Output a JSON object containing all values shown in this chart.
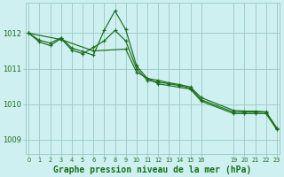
{
  "background_color": "#cff0f0",
  "grid_color": "#a0cccc",
  "line_color": "#1a6e1a",
  "marker_color": "#1a6e1a",
  "xlabel": "Graphe pression niveau de la mer (hPa)",
  "xlabel_fontsize": 7.0,
  "ylim": [
    1008.6,
    1012.85
  ],
  "yticks": [
    1009,
    1010,
    1011,
    1012
  ],
  "xlim": [
    -0.3,
    23.3
  ],
  "series": [
    {
      "x": [
        0,
        1,
        2,
        3,
        4,
        5,
        6,
        7,
        8,
        9,
        10,
        11,
        12,
        13,
        14,
        15,
        16,
        19,
        20,
        21,
        22,
        23
      ],
      "y": [
        1012.0,
        1011.8,
        1011.72,
        1011.87,
        1011.58,
        1011.48,
        1011.38,
        1012.08,
        1012.63,
        1012.1,
        1011.08,
        1010.72,
        1010.67,
        1010.6,
        1010.55,
        1010.48,
        1010.18,
        1009.82,
        1009.8,
        1009.8,
        1009.78,
        1009.32
      ]
    },
    {
      "x": [
        0,
        1,
        2,
        3,
        4,
        5,
        6,
        7,
        8,
        9,
        10,
        11,
        12,
        13,
        14,
        15,
        16,
        19,
        20,
        21,
        22,
        23
      ],
      "y": [
        1012.0,
        1011.75,
        1011.65,
        1011.85,
        1011.52,
        1011.42,
        1011.6,
        1011.78,
        1012.08,
        1011.78,
        1011.0,
        1010.67,
        1010.62,
        1010.57,
        1010.52,
        1010.45,
        1010.12,
        1009.77,
        1009.77,
        1009.77,
        1009.77,
        1009.32
      ]
    },
    {
      "x": [
        0,
        3,
        6,
        9,
        10,
        12,
        15,
        16,
        19,
        20,
        21,
        22,
        23
      ],
      "y": [
        1012.0,
        1011.82,
        1011.5,
        1011.55,
        1010.9,
        1010.57,
        1010.42,
        1010.08,
        1009.73,
        1009.73,
        1009.73,
        1009.73,
        1009.28
      ]
    }
  ],
  "xtick_vals": [
    0,
    1,
    2,
    3,
    4,
    5,
    6,
    7,
    8,
    9,
    10,
    11,
    12,
    13,
    14,
    15,
    16,
    19,
    20,
    21,
    22,
    23
  ]
}
